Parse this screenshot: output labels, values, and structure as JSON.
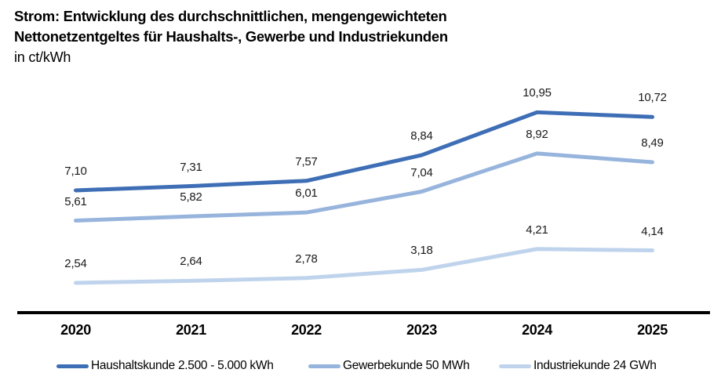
{
  "title": {
    "line1": "Strom: Entwicklung des durchschnittlichen, mengengewichteten",
    "line2": "Nettonetzentgeltes für Haushalts-, Gewerbe und Industriekunden",
    "unit": "in ct/kWh"
  },
  "chart_data": {
    "type": "line",
    "title": "Strom: Entwicklung des durchschnittlichen, mengengewichteten Nettonetzentgeltes für Haushalts-, Gewerbe und Industriekunden",
    "unit": "in ct/kWh",
    "categories": [
      "2020",
      "2021",
      "2022",
      "2023",
      "2024",
      "2025"
    ],
    "series": [
      {
        "name": "Haushaltskunde 2.500 - 5.000 kWh",
        "color": "#3E6EB5",
        "values": [
          7.1,
          7.31,
          7.57,
          8.84,
          10.95,
          10.72
        ]
      },
      {
        "name": "Gewerbekunde 50 MWh",
        "color": "#97B4DC",
        "values": [
          5.61,
          5.82,
          6.01,
          7.04,
          8.92,
          8.49
        ]
      },
      {
        "name": "Industriekunde 24 GWh",
        "color": "#BFD4EC",
        "values": [
          2.54,
          2.64,
          2.78,
          3.18,
          4.21,
          4.14
        ]
      }
    ],
    "decimal_separator": ",",
    "data_labels_shown": true,
    "grid": false,
    "legend_position": "bottom",
    "axis_color": "#000000"
  }
}
